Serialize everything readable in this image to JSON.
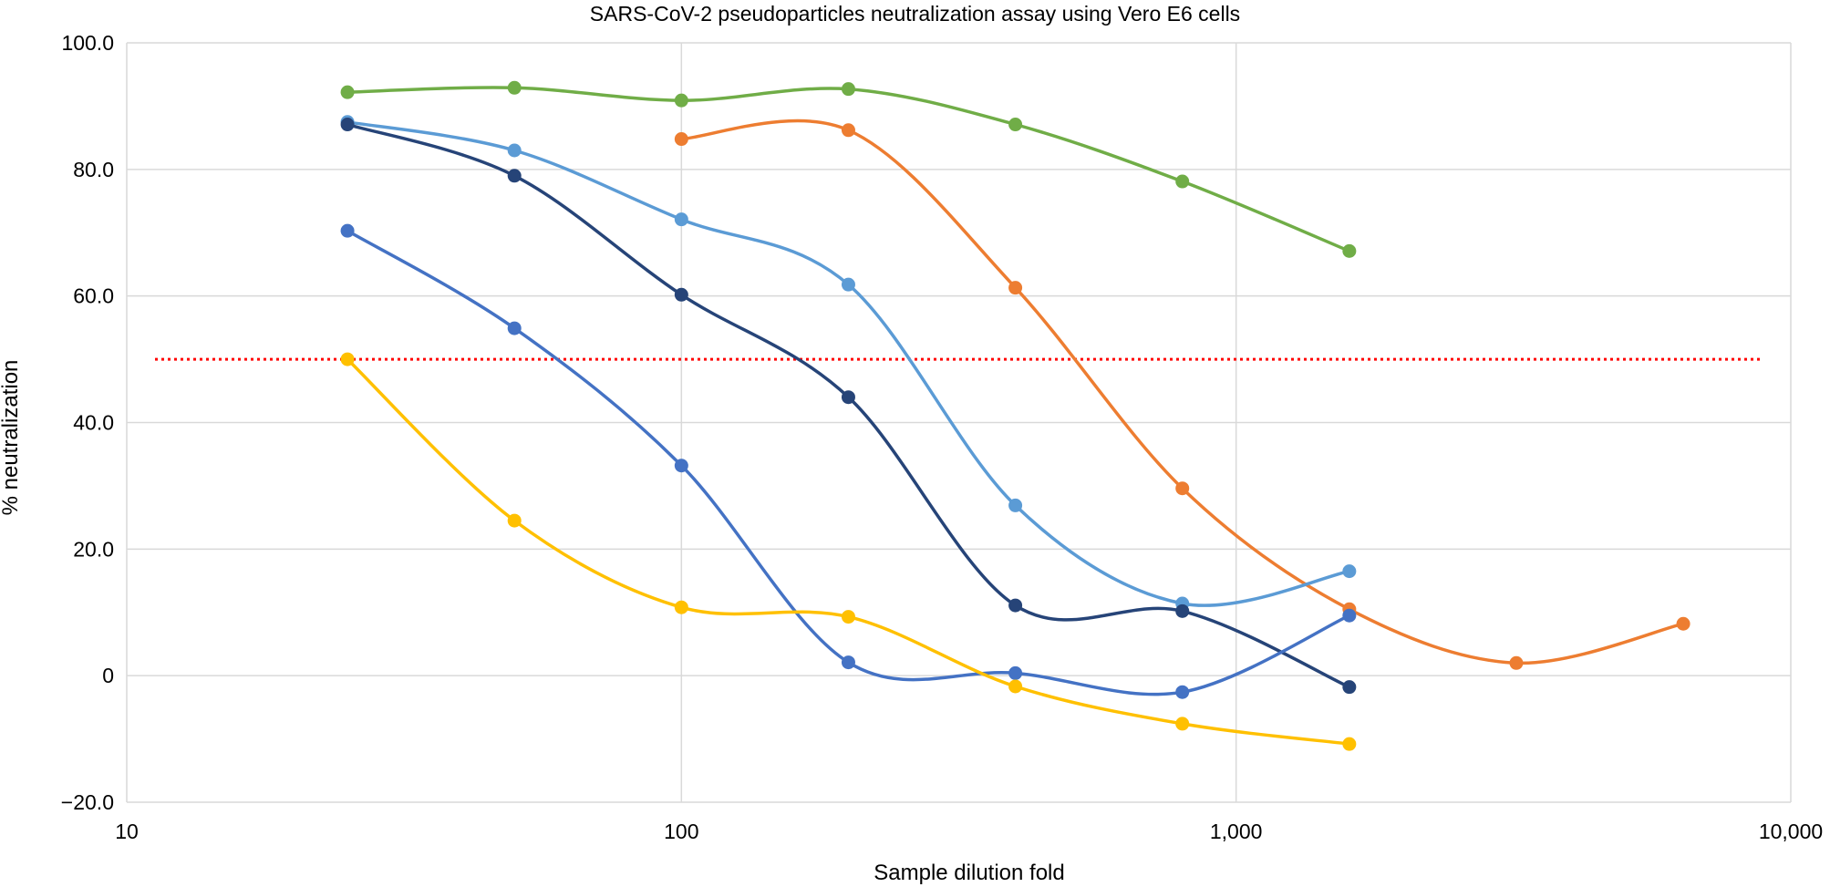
{
  "chart_data": {
    "type": "line",
    "title": "SARS-CoV-2 pseudoparticles neutralization assay using Vero E6 cells",
    "xlabel": "Sample dilution fold",
    "ylabel": "% neutralization",
    "x_scale": "log",
    "xlim": [
      10,
      10000
    ],
    "ylim": [
      -20,
      100
    ],
    "x_ticks": [
      10,
      100,
      1000,
      10000
    ],
    "x_tick_labels": [
      "10",
      "100",
      "1,000",
      "10,000"
    ],
    "y_ticks": [
      -20,
      0,
      20,
      40,
      60,
      80,
      100
    ],
    "y_tick_labels": [
      "−20.0",
      "0",
      "20.0",
      "40.0",
      "60.0",
      "80.0",
      "100.0"
    ],
    "grid": true,
    "legend": "none",
    "reference_line": {
      "y": 50,
      "style": "dotted",
      "color": "#ff0000"
    },
    "series": [
      {
        "color": "#70ad47",
        "x": [
          25,
          50,
          100,
          200,
          400,
          800,
          1600
        ],
        "y": [
          92.2,
          92.9,
          90.9,
          92.7,
          87.1,
          78.1,
          67.1
        ]
      },
      {
        "color": "#ed7d31",
        "x": [
          100,
          200,
          400,
          800,
          1600,
          3200,
          6400
        ],
        "y": [
          84.8,
          86.2,
          61.3,
          29.6,
          10.5,
          2.0,
          8.2
        ]
      },
      {
        "color": "#5b9bd5",
        "x": [
          25,
          50,
          100,
          200,
          400,
          800,
          1600
        ],
        "y": [
          87.5,
          83.0,
          72.1,
          61.8,
          26.9,
          11.4,
          16.5
        ]
      },
      {
        "color": "#264478",
        "x": [
          25,
          50,
          100,
          200,
          400,
          800,
          1600
        ],
        "y": [
          87.1,
          79.0,
          60.2,
          44.0,
          11.1,
          10.2,
          -1.8
        ]
      },
      {
        "color": "#4472c4",
        "x": [
          25,
          50,
          100,
          200,
          400,
          800,
          1600
        ],
        "y": [
          70.3,
          54.9,
          33.2,
          2.1,
          0.4,
          -2.6,
          9.5
        ]
      },
      {
        "color": "#ffc000",
        "x": [
          25,
          50,
          100,
          200,
          400,
          800,
          1600
        ],
        "y": [
          50.0,
          24.5,
          10.8,
          9.3,
          -1.7,
          -7.6,
          -10.8
        ]
      }
    ]
  }
}
